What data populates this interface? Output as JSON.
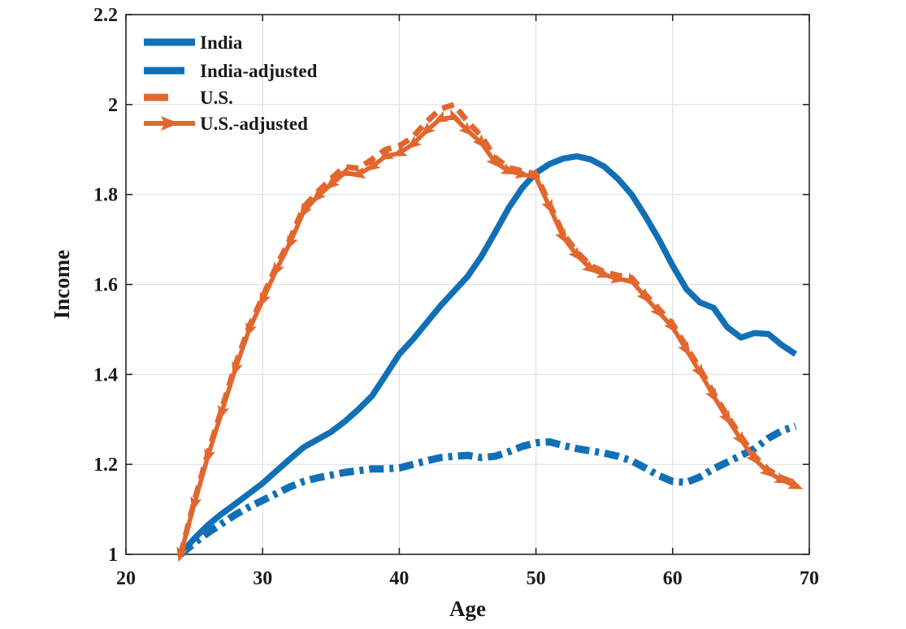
{
  "figure": {
    "background": "#ffffff",
    "axis_color": "#262626",
    "grid_color": "#e0e0e0",
    "blue": "#1170b5",
    "orange": "#e2672e"
  },
  "chart_data": {
    "type": "line",
    "title": "",
    "xlabel": "Age",
    "ylabel": "Income",
    "xlim": [
      20,
      70
    ],
    "ylim": [
      1,
      2.2
    ],
    "xticks": [
      20,
      30,
      40,
      50,
      60,
      70
    ],
    "yticks": [
      1,
      1.2,
      1.4,
      1.6,
      1.8,
      2,
      2.2
    ],
    "xtick_labels": [
      "20",
      "30",
      "40",
      "50",
      "60",
      "70"
    ],
    "ytick_labels": [
      "1",
      "1.2",
      "1.4",
      "1.6",
      "1.8",
      "2",
      "2.2"
    ],
    "grid": true,
    "legend_position": "top-left",
    "x": [
      24,
      25,
      26,
      27,
      28,
      29,
      30,
      31,
      32,
      33,
      34,
      35,
      36,
      37,
      38,
      39,
      40,
      41,
      42,
      43,
      44,
      45,
      46,
      47,
      48,
      49,
      50,
      51,
      52,
      53,
      54,
      55,
      56,
      57,
      58,
      59,
      60,
      61,
      62,
      63,
      64,
      65,
      66,
      67,
      68,
      69
    ],
    "series": [
      {
        "name": "India",
        "color": "#1170b5",
        "line": "solid",
        "width": 7.5,
        "marker": null,
        "values": [
          1.0,
          1.035,
          1.065,
          1.09,
          1.112,
          1.135,
          1.158,
          1.185,
          1.212,
          1.238,
          1.255,
          1.272,
          1.295,
          1.322,
          1.352,
          1.398,
          1.445,
          1.478,
          1.515,
          1.552,
          1.585,
          1.618,
          1.662,
          1.715,
          1.77,
          1.815,
          1.848,
          1.868,
          1.88,
          1.885,
          1.878,
          1.862,
          1.835,
          1.8,
          1.752,
          1.7,
          1.642,
          1.59,
          1.56,
          1.548,
          1.505,
          1.482,
          1.492,
          1.49,
          1.465,
          1.445
        ]
      },
      {
        "name": "India-adjusted",
        "color": "#1170b5",
        "line": "dashdot",
        "width": 9,
        "marker": null,
        "values": [
          1.0,
          1.025,
          1.048,
          1.068,
          1.088,
          1.105,
          1.12,
          1.135,
          1.15,
          1.162,
          1.17,
          1.176,
          1.182,
          1.186,
          1.19,
          1.19,
          1.192,
          1.2,
          1.208,
          1.215,
          1.218,
          1.22,
          1.215,
          1.218,
          1.228,
          1.24,
          1.248,
          1.25,
          1.242,
          1.235,
          1.23,
          1.225,
          1.218,
          1.208,
          1.192,
          1.175,
          1.162,
          1.16,
          1.172,
          1.19,
          1.205,
          1.22,
          1.235,
          1.258,
          1.275,
          1.285
        ]
      },
      {
        "name": "U.S.",
        "color": "#e2672e",
        "line": "dashed",
        "width": 7,
        "marker": null,
        "values": [
          1.0,
          1.118,
          1.225,
          1.322,
          1.42,
          1.505,
          1.572,
          1.64,
          1.7,
          1.772,
          1.805,
          1.835,
          1.862,
          1.858,
          1.878,
          1.9,
          1.908,
          1.928,
          1.962,
          1.99,
          2.0,
          1.962,
          1.93,
          1.882,
          1.86,
          1.852,
          1.845,
          1.778,
          1.712,
          1.672,
          1.642,
          1.628,
          1.62,
          1.615,
          1.578,
          1.545,
          1.512,
          1.462,
          1.412,
          1.358,
          1.308,
          1.262,
          1.218,
          1.188,
          1.17,
          1.158
        ]
      },
      {
        "name": "U.S.-adjusted",
        "color": "#e2672e",
        "line": "solid",
        "width": 5.5,
        "marker": "arrow",
        "values": [
          1.0,
          1.112,
          1.218,
          1.315,
          1.412,
          1.498,
          1.565,
          1.632,
          1.692,
          1.762,
          1.795,
          1.822,
          1.848,
          1.845,
          1.862,
          1.885,
          1.892,
          1.912,
          1.942,
          1.968,
          1.972,
          1.942,
          1.915,
          1.872,
          1.852,
          1.845,
          1.838,
          1.772,
          1.705,
          1.665,
          1.635,
          1.622,
          1.612,
          1.608,
          1.572,
          1.538,
          1.505,
          1.455,
          1.405,
          1.352,
          1.302,
          1.255,
          1.212,
          1.182,
          1.165,
          1.152
        ]
      }
    ]
  }
}
